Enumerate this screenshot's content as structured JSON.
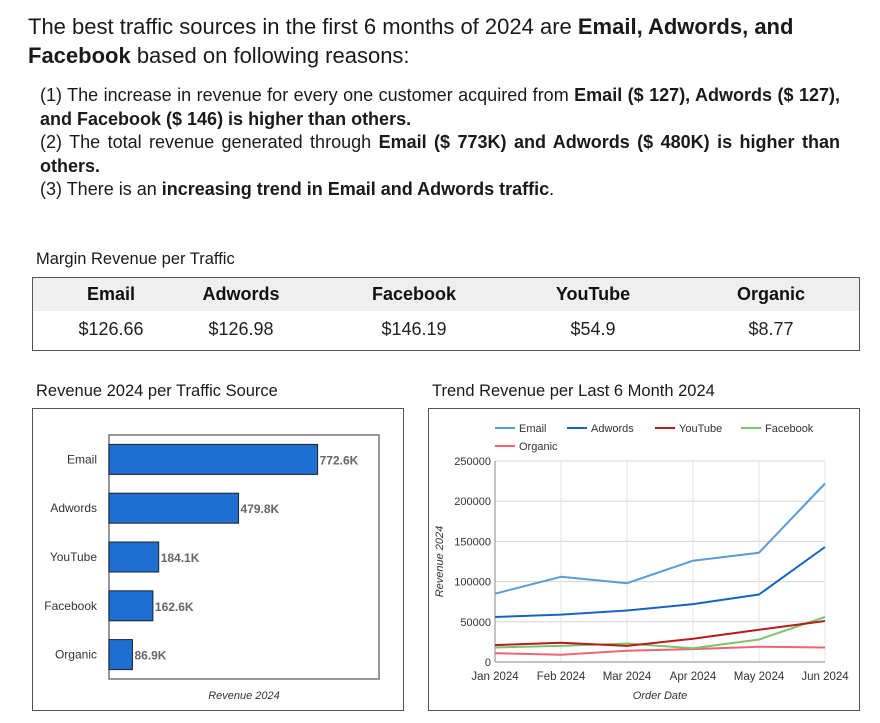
{
  "headline": {
    "prefix": "The best traffic sources in the first 6 months of 2024 are ",
    "bold": "Email, Adwords, and Facebook",
    "suffix": " based on following reasons:"
  },
  "reasons": [
    {
      "n": "(1) ",
      "t1": "The increase in revenue for every one customer acquired from ",
      "b1": "Email ($ 127), Adwords ($ 127), and Facebook ($ 146) is higher than others.",
      "t2": ""
    },
    {
      "n": "(2) ",
      "t1": "The total revenue generated through ",
      "b1": "Email ($ 773K) and Adwords ($ 480K) is higher than others.",
      "t2": ""
    },
    {
      "n": "(3) ",
      "t1": "There is an ",
      "b1": "increasing trend in Email and Adwords traffic",
      "t2": "."
    }
  ],
  "scorecard": {
    "title": "Margin Revenue per Traffic",
    "columns": [
      {
        "label": "Email",
        "value": "$126.66"
      },
      {
        "label": "Adwords",
        "value": "$126.98"
      },
      {
        "label": "Facebook",
        "value": "$146.19"
      },
      {
        "label": "YouTube",
        "value": "$54.9"
      },
      {
        "label": "Organic",
        "value": "$8.77"
      }
    ]
  },
  "colors": {
    "bar": "#1f6fd2",
    "email": "#5b9bd5",
    "adwords": "#1565c0",
    "youtube": "#b71c1c",
    "facebook": "#7cc36b",
    "organic": "#f06470"
  },
  "chart_data": [
    {
      "type": "bar",
      "orientation": "horizontal",
      "title": "Revenue 2024 per Traffic Source",
      "xlabel": "Revenue 2024",
      "categories": [
        "Email",
        "Adwords",
        "YouTube",
        "Facebook",
        "Organic"
      ],
      "values": [
        772.6,
        479.8,
        184.1,
        162.6,
        86.9
      ],
      "data_labels": [
        "772.6K",
        "479.8K",
        "184.1K",
        "162.6K",
        "86.9K"
      ],
      "xlim": [
        0,
        1000
      ]
    },
    {
      "type": "line",
      "title": "Trend Revenue per Last 6 Month 2024",
      "xlabel": "Order Date",
      "ylabel": "Revenue 2024",
      "x": [
        "Jan 2024",
        "Feb 2024",
        "Mar 2024",
        "Apr 2024",
        "May 2024",
        "Jun 2024"
      ],
      "ylim": [
        0,
        250000
      ],
      "yticks": [
        "0",
        "50000",
        "100000",
        "150000",
        "200000",
        "250000"
      ],
      "legend_position": "top",
      "series": [
        {
          "name": "Email",
          "color": "#5b9bd5",
          "values": [
            85000,
            106000,
            98000,
            126000,
            136000,
            222000
          ]
        },
        {
          "name": "Adwords",
          "color": "#1565c0",
          "values": [
            56000,
            59000,
            64000,
            72000,
            84000,
            143000
          ]
        },
        {
          "name": "YouTube",
          "color": "#b71c1c",
          "values": [
            21000,
            24000,
            20000,
            29000,
            40000,
            51000
          ]
        },
        {
          "name": "Facebook",
          "color": "#7cc36b",
          "values": [
            18000,
            20000,
            23000,
            17000,
            28000,
            56000
          ]
        },
        {
          "name": "Organic",
          "color": "#f06470",
          "values": [
            11000,
            9000,
            14000,
            16000,
            19000,
            18000
          ]
        }
      ]
    }
  ]
}
